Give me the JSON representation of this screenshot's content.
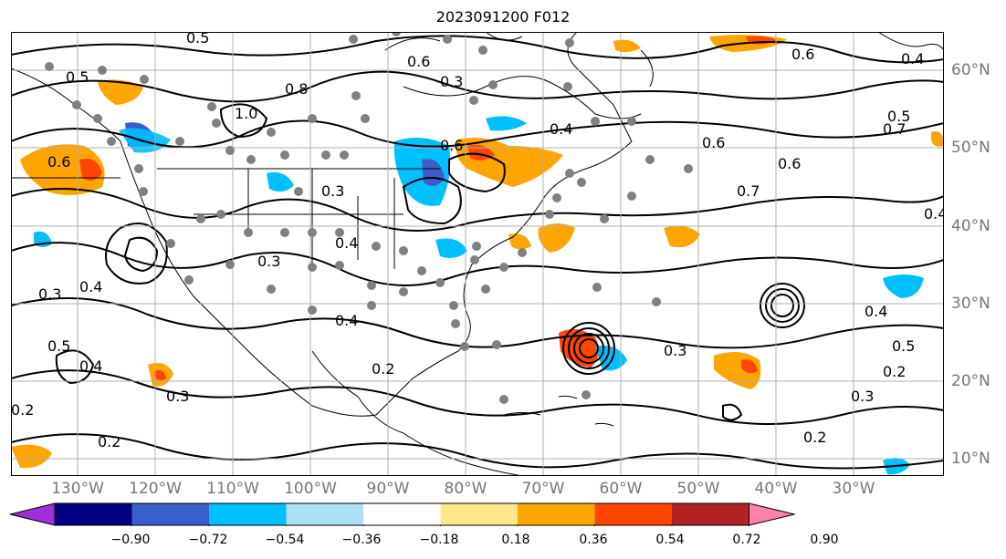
{
  "title": "2023091200 F012",
  "lat_labels": [
    "60°N",
    "50°N",
    "40°N",
    "30°N",
    "20°N",
    "10°N"
  ],
  "lon_labels": [
    "130°W",
    "120°W",
    "110°W",
    "100°W",
    "90°W",
    "80°W",
    "70°W",
    "60°W",
    "50°W",
    "40°W",
    "30°W"
  ],
  "contour_labels": [
    "0.5",
    "0.6",
    "0.5",
    "0.6",
    "0.4",
    "0.3",
    "0.6",
    "0.8",
    "1.0",
    "0.6",
    "0.4",
    "0.5",
    "0.7",
    "0.6",
    "0.7",
    "0.6",
    "0.4",
    "0.3",
    "0.4",
    "0.3",
    "0.4",
    "0.4",
    "0.3",
    "0.2",
    "0.5",
    "0.4",
    "0.3",
    "0.2",
    "0.3",
    "0.2",
    "0.4",
    "0.5",
    "0.2",
    "0.3",
    "0.2"
  ],
  "colorbar": {
    "ticks": [
      "−0.90",
      "−0.72",
      "−0.54",
      "−0.36",
      "−0.18",
      "0.18",
      "0.36",
      "0.54",
      "0.72",
      "0.90"
    ],
    "colors": [
      "#9b30d9",
      "#000080",
      "#3a5fcd",
      "#00bfff",
      "#b0e0f6",
      "#ffffff",
      "#fbe88a",
      "#ffa500",
      "#ff4500",
      "#b22222",
      "#ff82ab"
    ]
  },
  "colors": {
    "gridline": "#b0b0b0",
    "station": "#808080",
    "coast": "#000000",
    "axis_label": "#777777"
  }
}
